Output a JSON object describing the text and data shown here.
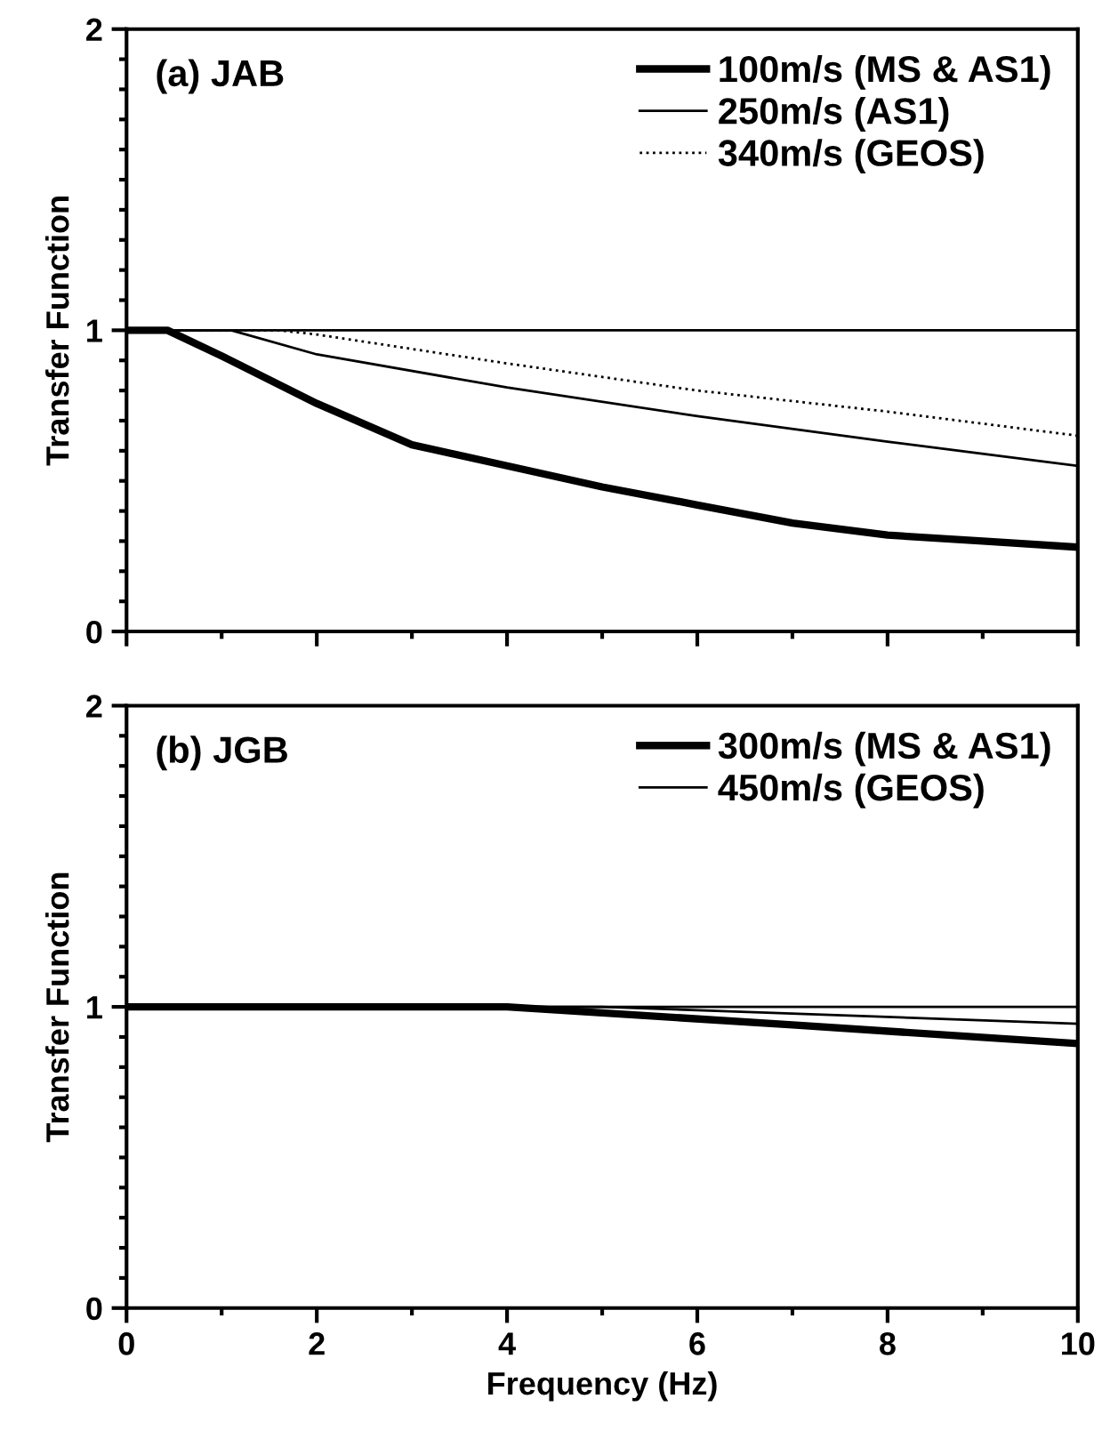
{
  "chart_data": [
    {
      "type": "line",
      "ylabel": "Transfer Function",
      "annotations": [
        "(a) JAB"
      ],
      "xlim": [
        0,
        10
      ],
      "ylim": [
        0,
        2
      ],
      "xticks": [
        {
          "value": 0,
          "label": null
        },
        {
          "value": 2,
          "label": null
        },
        {
          "value": 4,
          "label": null
        },
        {
          "value": 6,
          "label": null
        },
        {
          "value": 8,
          "label": null
        },
        {
          "value": 10,
          "label": null
        }
      ],
      "yticks": [
        0,
        1,
        2
      ],
      "tick_labels": "y",
      "grid": false,
      "legend": "top right",
      "ref_lines": [
        {
          "axis": "y",
          "value": 1,
          "color": "#000000"
        }
      ],
      "series": [
        {
          "name": "100m/s (MS & AS1)",
          "color": "#000000",
          "line_style": "solid",
          "x": [
            0,
            0.43,
            1,
            2,
            3,
            4,
            5,
            6,
            7,
            8,
            9,
            10
          ],
          "values": [
            1,
            1,
            0.915,
            0.757,
            0.62,
            0.55,
            0.48,
            0.42,
            0.36,
            0.32,
            0.3,
            0.28
          ]
        },
        {
          "name": "250m/s (AS1)",
          "color": "#000000",
          "line_style": "solid",
          "x": [
            0,
            1.1,
            2,
            4,
            6,
            8,
            10
          ],
          "values": [
            1,
            1,
            0.92,
            0.81,
            0.715,
            0.63,
            0.55
          ]
        },
        {
          "name": "340m/s (GEOS)",
          "color": "#000000",
          "line_style": "dotted",
          "x": [
            0,
            1.6,
            2,
            4,
            6,
            8,
            10
          ],
          "values": [
            1,
            1,
            0.986,
            0.89,
            0.8,
            0.73,
            0.65
          ]
        }
      ]
    },
    {
      "type": "line",
      "xlabel": "Frequency (Hz)",
      "ylabel": "Transfer Function",
      "annotations": [
        "(b) JGB"
      ],
      "xlim": [
        0,
        10
      ],
      "ylim": [
        0,
        2
      ],
      "xticks": [
        0,
        2,
        4,
        6,
        8,
        10
      ],
      "yticks": [
        0,
        1,
        2
      ],
      "grid": false,
      "legend": "top right",
      "ref_lines": [
        {
          "axis": "y",
          "value": 1,
          "color": "#000000"
        }
      ],
      "series": [
        {
          "name": "300m/s (MS & AS1)",
          "color": "#000000",
          "line_style": "solid",
          "x": [
            0,
            4,
            7,
            10
          ],
          "values": [
            1,
            1,
            0.94,
            0.878
          ]
        },
        {
          "name": "450m/s (GEOS)",
          "color": "#000000",
          "line_style": "solid",
          "x": [
            0,
            5,
            10
          ],
          "values": [
            1,
            1,
            0.944
          ]
        }
      ]
    }
  ]
}
